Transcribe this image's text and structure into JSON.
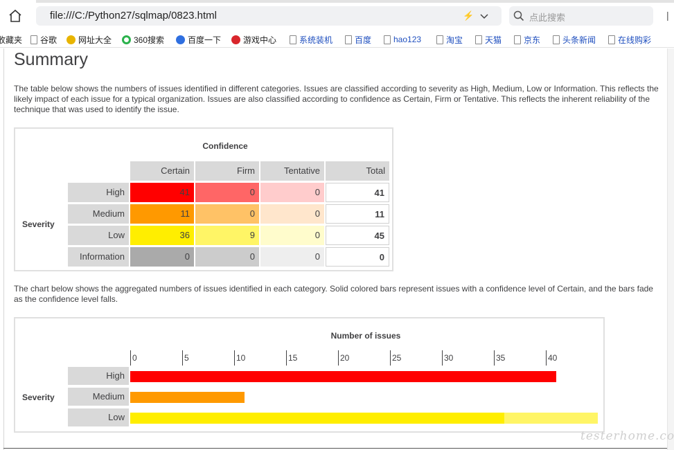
{
  "browser": {
    "url": "file:///C:/Python27/sqlmap/0823.html",
    "search_placeholder": "点此搜索",
    "bookmarks": [
      {
        "label": "收藏夹",
        "icon": "none",
        "link": false
      },
      {
        "label": "谷歌",
        "icon": "page-icon",
        "link": false
      },
      {
        "label": "网址大全",
        "icon": "plus-badge-icon",
        "link": false
      },
      {
        "label": "360搜索",
        "icon": "ring-icon",
        "link": false
      },
      {
        "label": "百度一下",
        "icon": "paw-icon",
        "link": false
      },
      {
        "label": "游戏中心",
        "icon": "game-icon",
        "link": false
      },
      {
        "label": "系统装机",
        "icon": "page-icon",
        "link": true
      },
      {
        "label": "百度",
        "icon": "page-icon",
        "link": true
      },
      {
        "label": "hao123",
        "icon": "page-icon",
        "link": true
      },
      {
        "label": "淘宝",
        "icon": "page-icon",
        "link": true
      },
      {
        "label": "天猫",
        "icon": "page-icon",
        "link": true
      },
      {
        "label": "京东",
        "icon": "page-icon",
        "link": true
      },
      {
        "label": "头条新闻",
        "icon": "page-icon",
        "link": true
      },
      {
        "label": "在线购彩",
        "icon": "page-icon",
        "link": true
      }
    ]
  },
  "report": {
    "title": "Summary",
    "intro": "The table below shows the numbers of issues identified in different categories. Issues are classified according to severity as High, Medium, Low or Information. This reflects the likely impact of each issue for a typical organization. Issues are also classified according to confidence as Certain, Firm or Tentative. This reflects the inherent reliability of the technique that was used to identify the issue.",
    "chart_intro": "The chart below shows the aggregated numbers of issues identified in each category. Solid colored bars represent issues with a confidence level of Certain, and the bars fade as the confidence level falls.",
    "table": {
      "confidence_label": "Confidence",
      "severity_label": "Severity",
      "columns": [
        "Certain",
        "Firm",
        "Tentative",
        "Total"
      ],
      "rows": [
        {
          "label": "High",
          "values": [
            "41",
            "0",
            "0"
          ],
          "total": "41"
        },
        {
          "label": "Medium",
          "values": [
            "11",
            "0",
            "0"
          ],
          "total": "11"
        },
        {
          "label": "Low",
          "values": [
            "36",
            "9",
            "0"
          ],
          "total": "45"
        },
        {
          "label": "Information",
          "values": [
            "0",
            "0",
            "0"
          ],
          "total": "0"
        }
      ],
      "colors": [
        [
          "#ff0000",
          "#ff6666",
          "#ffcccc"
        ],
        [
          "#ff9900",
          "#ffc266",
          "#ffe6cc"
        ],
        [
          "#ffee00",
          "#fff566",
          "#fffccc"
        ],
        [
          "#aaaaaa",
          "#cccccc",
          "#eeeeee"
        ]
      ]
    }
  },
  "chart_data": {
    "type": "bar",
    "orientation": "horizontal",
    "stacked": true,
    "title": "Number of issues",
    "ylabel": "Severity",
    "categories": [
      "High",
      "Medium",
      "Low"
    ],
    "series": [
      {
        "name": "Certain",
        "values": [
          41,
          11,
          36
        ],
        "colors": [
          "#ff0000",
          "#ff9900",
          "#ffee00"
        ]
      },
      {
        "name": "Firm",
        "values": [
          0,
          0,
          9
        ],
        "colors": [
          "#ff6666",
          "#ffc266",
          "#fff566"
        ]
      },
      {
        "name": "Tentative",
        "values": [
          0,
          0,
          0
        ],
        "colors": [
          "#ffcccc",
          "#ffe6cc",
          "#fffccc"
        ]
      }
    ],
    "xticks": [
      "0",
      "5",
      "10",
      "15",
      "20",
      "25",
      "30",
      "35",
      "40"
    ],
    "xlim": [
      0,
      45
    ]
  },
  "watermark": "testerhome.com"
}
